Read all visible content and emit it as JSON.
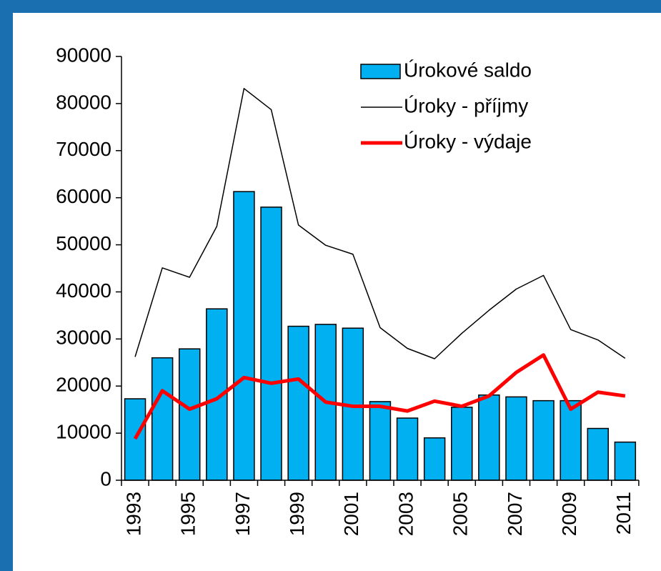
{
  "chart_data": {
    "type": "bar",
    "categories": [
      "1993",
      null,
      "1995",
      null,
      "1997",
      null,
      "1999",
      null,
      "2001",
      null,
      "2003",
      null,
      "2005",
      null,
      "2007",
      null,
      "2009",
      null,
      "2011"
    ],
    "series": [
      {
        "name": "Úrokové saldo",
        "type": "bar",
        "color": "#00b0f0",
        "values": [
          17300,
          26000,
          27900,
          36400,
          61300,
          58000,
          32700,
          33100,
          32300,
          16700,
          13200,
          9000,
          15500,
          18100,
          17700,
          16900,
          16900,
          11000,
          8100
        ]
      },
      {
        "name": "Úroky - příjmy",
        "type": "line",
        "color": "#000000",
        "width": 1.5,
        "values": [
          26200,
          45100,
          43100,
          53900,
          83200,
          78700,
          54200,
          49900,
          48000,
          32400,
          28000,
          25800,
          31200,
          36100,
          40600,
          43500,
          32000,
          29800,
          25900
        ]
      },
      {
        "name": "Úroky - výdaje",
        "type": "line",
        "color": "#ff0000",
        "width": 5,
        "values": [
          8800,
          19000,
          15100,
          17300,
          21800,
          20600,
          21500,
          16600,
          15700,
          15700,
          14700,
          16800,
          15700,
          17900,
          22900,
          26600,
          15100,
          18700,
          17900
        ]
      }
    ],
    "ylim": [
      0,
      90000
    ],
    "yticks": [
      0,
      10000,
      20000,
      30000,
      40000,
      50000,
      60000,
      70000,
      80000,
      90000
    ],
    "legend": "top-right"
  }
}
